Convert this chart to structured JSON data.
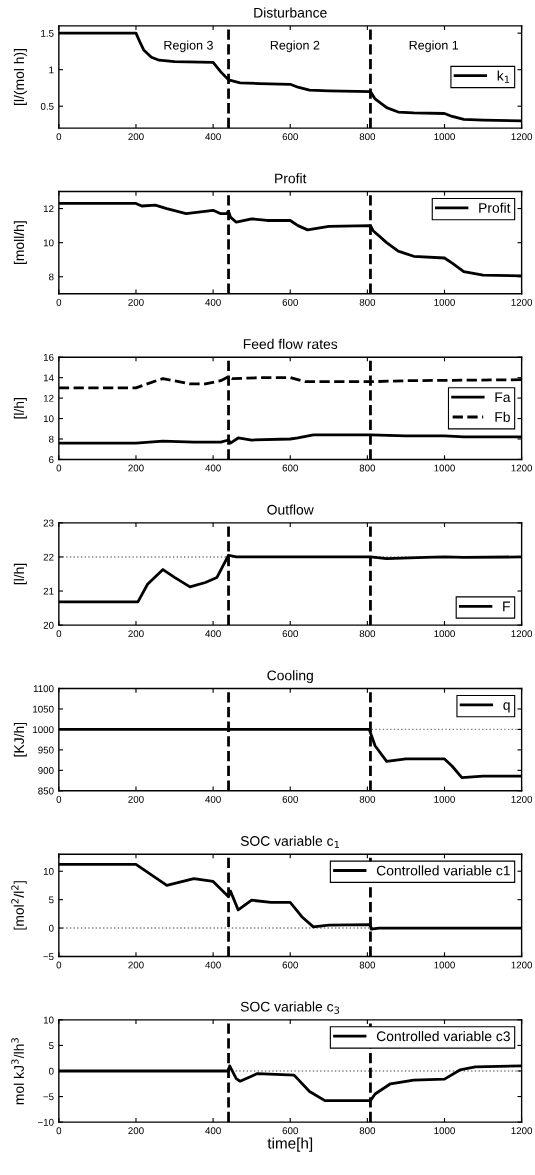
{
  "chart_data": [
    {
      "type": "line",
      "title": "Disturbance",
      "ylabel": "[l/(mol h)]",
      "xlim": [
        0,
        1200
      ],
      "xticks": [
        0,
        200,
        400,
        600,
        800,
        1000,
        1200
      ],
      "ylim": [
        0.2,
        1.6
      ],
      "yticks": [
        0.5,
        1,
        1.5
      ],
      "legend": "right",
      "grid": false,
      "annotations": [
        "Region 3",
        "Region 2",
        "Region 1"
      ],
      "ref_lines": [
        {
          "axis": "x",
          "value": 440,
          "color": "#000000",
          "line_style": "dashed"
        },
        {
          "axis": "x",
          "value": 808,
          "color": "#000000",
          "line_style": "dashed"
        }
      ],
      "series": [
        {
          "name": "k$_{1}$",
          "color": "#000000",
          "line_style": "solid",
          "x": [
            0,
            200,
            210,
            220,
            240,
            260,
            300,
            400,
            420,
            440,
            470,
            520,
            600,
            620,
            650,
            700,
            808,
            820,
            850,
            880,
            920,
            1000,
            1020,
            1050,
            1100,
            1200
          ],
          "values": [
            1.5,
            1.5,
            1.38,
            1.27,
            1.17,
            1.13,
            1.11,
            1.1,
            0.97,
            0.86,
            0.82,
            0.81,
            0.8,
            0.76,
            0.72,
            0.71,
            0.7,
            0.6,
            0.48,
            0.42,
            0.41,
            0.4,
            0.36,
            0.32,
            0.31,
            0.3
          ]
        }
      ]
    },
    {
      "type": "line",
      "title": "Profit",
      "ylabel": "[moll/h]",
      "xlim": [
        0,
        1200
      ],
      "xticks": [
        0,
        200,
        400,
        600,
        800,
        1000,
        1200
      ],
      "ylim": [
        7,
        13
      ],
      "yticks": [
        8,
        10,
        12
      ],
      "legend": "top right",
      "grid": false,
      "ref_lines": [
        {
          "axis": "x",
          "value": 440,
          "color": "#000000",
          "line_style": "dashed"
        },
        {
          "axis": "x",
          "value": 808,
          "color": "#000000",
          "line_style": "dashed"
        }
      ],
      "series": [
        {
          "name": "Profit",
          "color": "#000000",
          "line_style": "solid",
          "x": [
            0,
            200,
            215,
            250,
            280,
            330,
            400,
            420,
            435,
            440,
            445,
            460,
            500,
            540,
            600,
            620,
            645,
            700,
            808,
            815,
            850,
            880,
            920,
            1000,
            1020,
            1050,
            1100,
            1200
          ],
          "values": [
            12.3,
            12.3,
            12.15,
            12.2,
            12.0,
            11.7,
            11.9,
            11.7,
            11.7,
            11.85,
            11.5,
            11.2,
            11.4,
            11.3,
            11.3,
            11.0,
            10.75,
            10.95,
            11.0,
            10.7,
            10.0,
            9.5,
            9.2,
            9.1,
            8.8,
            8.3,
            8.1,
            8.05
          ]
        }
      ]
    },
    {
      "type": "line",
      "title": "Feed flow rates",
      "ylabel": "[l/h]",
      "xlim": [
        0,
        1200
      ],
      "xticks": [
        0,
        200,
        400,
        600,
        800,
        1000,
        1200
      ],
      "ylim": [
        6,
        16
      ],
      "yticks": [
        6,
        8,
        10,
        12,
        14,
        16
      ],
      "legend": "right",
      "grid": false,
      "ref_lines": [
        {
          "axis": "x",
          "value": 440,
          "color": "#000000",
          "line_style": "dashed"
        },
        {
          "axis": "x",
          "value": 808,
          "color": "#000000",
          "line_style": "dashed"
        }
      ],
      "series": [
        {
          "name": "Fa",
          "color": "#000000",
          "line_style": "solid",
          "x": [
            0,
            200,
            270,
            350,
            420,
            440,
            445,
            465,
            500,
            600,
            620,
            660,
            808,
            900,
            1000,
            1050,
            1200
          ],
          "values": [
            7.6,
            7.6,
            7.8,
            7.7,
            7.7,
            7.9,
            7.6,
            8.1,
            7.9,
            8.0,
            8.1,
            8.4,
            8.4,
            8.3,
            8.3,
            8.2,
            8.2
          ]
        },
        {
          "name": "Fb",
          "color": "#000000",
          "line_style": "dashed",
          "x": [
            0,
            200,
            260,
            270,
            340,
            380,
            420,
            440,
            450,
            520,
            600,
            640,
            808,
            900,
            1200
          ],
          "values": [
            13.0,
            13.0,
            13.8,
            13.9,
            13.4,
            13.4,
            13.7,
            14.1,
            13.9,
            14.0,
            14.0,
            13.6,
            13.6,
            13.7,
            13.8
          ]
        }
      ]
    },
    {
      "type": "line",
      "title": "Outflow",
      "ylabel": "[l/h]",
      "xlim": [
        0,
        1200
      ],
      "xticks": [
        0,
        200,
        400,
        600,
        800,
        1000,
        1200
      ],
      "ylim": [
        20,
        23
      ],
      "yticks": [
        20,
        21,
        22,
        23
      ],
      "legend": "bottom right",
      "grid": false,
      "ref_lines": [
        {
          "axis": "x",
          "value": 440,
          "color": "#000000",
          "line_style": "dashed"
        },
        {
          "axis": "x",
          "value": 808,
          "color": "#000000",
          "line_style": "dashed"
        },
        {
          "axis": "y",
          "value": 22,
          "color": "#808080",
          "line_style": "dotted"
        }
      ],
      "series": [
        {
          "name": "F",
          "color": "#000000",
          "line_style": "solid",
          "x": [
            0,
            205,
            230,
            270,
            300,
            340,
            380,
            410,
            440,
            460,
            808,
            850,
            950,
            1000,
            1050,
            1200
          ],
          "values": [
            20.68,
            20.68,
            21.2,
            21.63,
            21.4,
            21.12,
            21.25,
            21.4,
            22.05,
            22.0,
            22.0,
            21.95,
            21.99,
            22.0,
            21.99,
            22.0
          ]
        }
      ]
    },
    {
      "type": "line",
      "title": "Cooling",
      "ylabel": "[KJ/h]",
      "xlim": [
        0,
        1200
      ],
      "xticks": [
        0,
        200,
        400,
        600,
        800,
        1000,
        1200
      ],
      "ylim": [
        850,
        1100
      ],
      "yticks": [
        850,
        900,
        950,
        1000,
        1050,
        1100
      ],
      "legend": "top right",
      "grid": false,
      "ref_lines": [
        {
          "axis": "x",
          "value": 440,
          "color": "#000000",
          "line_style": "dashed"
        },
        {
          "axis": "x",
          "value": 808,
          "color": "#000000",
          "line_style": "dashed"
        },
        {
          "axis": "y",
          "value": 1000,
          "color": "#808080",
          "line_style": "dotted"
        }
      ],
      "series": [
        {
          "name": "q",
          "color": "#000000",
          "line_style": "solid",
          "x": [
            0,
            805,
            820,
            850,
            900,
            1000,
            1020,
            1045,
            1100,
            1200
          ],
          "values": [
            1000,
            1000,
            960,
            922,
            928,
            928,
            910,
            882,
            886,
            886
          ]
        }
      ]
    },
    {
      "type": "line",
      "title": "SOC variable c$_{1}$",
      "ylabel": "[mol$^{2}$/l$^{2}$]",
      "xlim": [
        0,
        1200
      ],
      "xticks": [
        0,
        200,
        400,
        600,
        800,
        1000,
        1200
      ],
      "ylim": [
        -5,
        13
      ],
      "yticks": [
        -5,
        0,
        5,
        10
      ],
      "legend": "top right",
      "grid": false,
      "ref_lines": [
        {
          "axis": "x",
          "value": 440,
          "color": "#000000",
          "line_style": "dashed"
        },
        {
          "axis": "x",
          "value": 808,
          "color": "#000000",
          "line_style": "dashed"
        },
        {
          "axis": "y",
          "value": 0,
          "color": "#808080",
          "line_style": "dotted"
        }
      ],
      "series": [
        {
          "name": "Controlled variable c1",
          "color": "#000000",
          "line_style": "solid",
          "x": [
            0,
            200,
            280,
            350,
            400,
            440,
            445,
            465,
            500,
            550,
            600,
            630,
            660,
            700,
            808,
            810,
            830,
            1200
          ],
          "values": [
            11.2,
            11.2,
            7.5,
            8.7,
            8.2,
            5.5,
            6.5,
            3.2,
            4.9,
            4.5,
            4.5,
            2.0,
            0.2,
            0.5,
            0.6,
            -0.2,
            0.0,
            0.0
          ]
        }
      ]
    },
    {
      "type": "line",
      "title": "SOC variable c$_{3}$",
      "ylabel": "mol kJ$^{3}$/lh$^{3}$",
      "xlabel": "time[h]",
      "xlim": [
        0,
        1200
      ],
      "xticks": [
        0,
        200,
        400,
        600,
        800,
        1000,
        1200
      ],
      "ylim": [
        -10,
        10
      ],
      "yticks": [
        -10,
        -5,
        0,
        5,
        10
      ],
      "legend": "top right",
      "grid": false,
      "ref_lines": [
        {
          "axis": "x",
          "value": 440,
          "color": "#000000",
          "line_style": "dashed"
        },
        {
          "axis": "x",
          "value": 808,
          "color": "#000000",
          "line_style": "dashed"
        },
        {
          "axis": "y",
          "value": 0,
          "color": "#808080",
          "line_style": "dotted"
        }
      ],
      "series": [
        {
          "name": "Controlled variable c3",
          "color": "#000000",
          "line_style": "solid",
          "x": [
            0,
            440,
            443,
            460,
            470,
            515,
            610,
            650,
            690,
            808,
            820,
            860,
            920,
            1000,
            1040,
            1080,
            1200
          ],
          "values": [
            0,
            0,
            1.0,
            -1.5,
            -2.0,
            -0.5,
            -0.8,
            -4.0,
            -5.8,
            -5.8,
            -4.5,
            -2.5,
            -1.8,
            -1.6,
            0.2,
            0.8,
            1.0
          ]
        }
      ]
    }
  ]
}
